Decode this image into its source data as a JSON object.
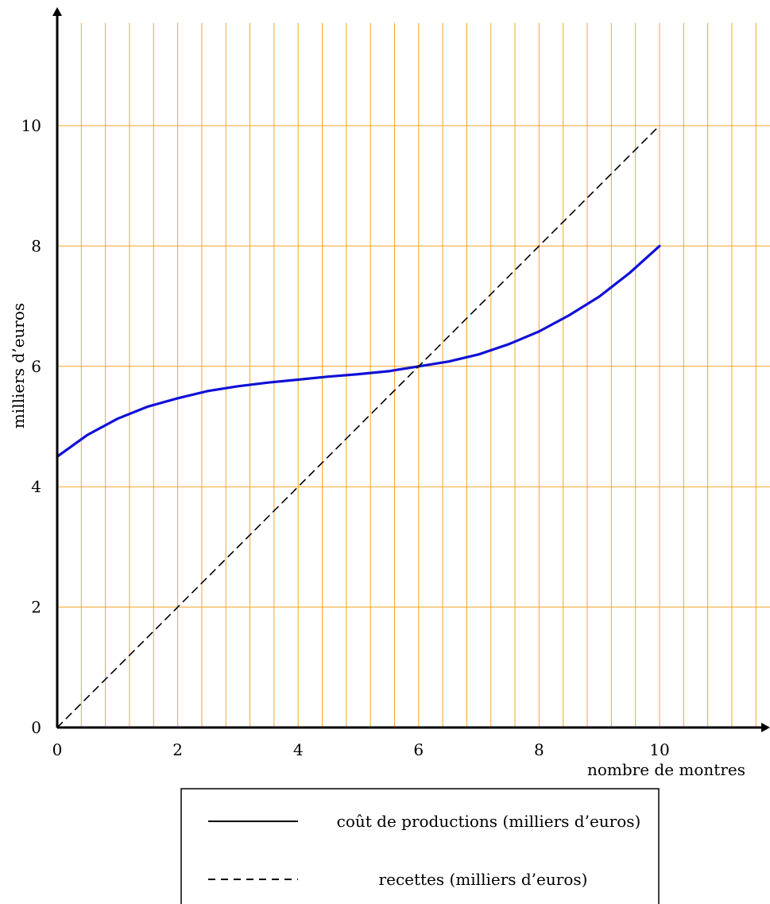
{
  "chart_data": {
    "type": "line",
    "xlabel": "nombre de montres",
    "ylabel": "milliers d’euros",
    "xlim": [
      0,
      11.8
    ],
    "ylim": [
      0,
      11.6
    ],
    "x_ticks": [
      "0",
      "2",
      "4",
      "6",
      "8",
      "10"
    ],
    "y_ticks": [
      "0",
      "2",
      "4",
      "6",
      "8",
      "10"
    ],
    "grid": {
      "x_step": 0.4,
      "y_step": 2,
      "color": "#f5a623"
    },
    "series": [
      {
        "name": "coût de productions (milliers d’euros)",
        "color": "#1010d8",
        "style": "solid",
        "x": [
          0,
          0.5,
          1,
          1.5,
          2,
          2.5,
          3,
          3.5,
          4,
          4.5,
          5,
          5.5,
          6,
          6.5,
          7,
          7.5,
          8,
          8.5,
          9,
          9.5,
          10
        ],
        "y": [
          4.5,
          4.86,
          5.13,
          5.33,
          5.47,
          5.59,
          5.67,
          5.73,
          5.78,
          5.83,
          5.87,
          5.92,
          6.0,
          6.08,
          6.2,
          6.37,
          6.58,
          6.85,
          7.16,
          7.55,
          8.0
        ]
      },
      {
        "name": "recettes (milliers d’euros)",
        "color": "#000000",
        "style": "dashed",
        "x": [
          0,
          10
        ],
        "y": [
          0,
          10
        ]
      }
    ],
    "legend": {
      "position": "bottom",
      "entries": [
        {
          "label": "coût de productions (milliers d’euros)",
          "style": "solid"
        },
        {
          "label": "recettes (milliers d’euros)",
          "style": "dashed"
        }
      ]
    }
  }
}
